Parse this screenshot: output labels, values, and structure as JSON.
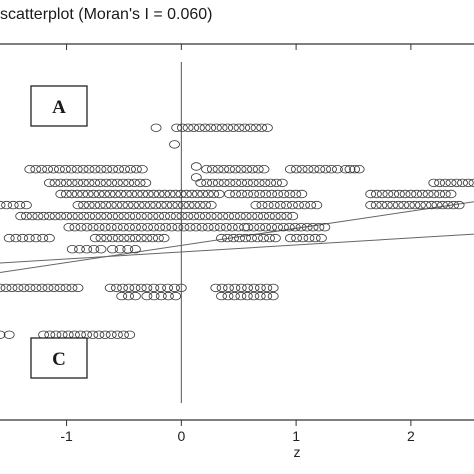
{
  "chart_data": {
    "type": "scatter",
    "title": "scatterplot (Moran's I = 0.060)",
    "xlabel": "z",
    "ylabel": "",
    "xlim": [
      -1.58,
      2.55
    ],
    "ylim": [
      -1.0,
      1.1
    ],
    "x_ticks": [
      -1,
      0,
      1,
      2
    ],
    "x_tick_labels": [
      "-1",
      "0",
      "1",
      "2"
    ],
    "grid": false,
    "quadrant_labels": [
      "A",
      "C"
    ],
    "fit_lines": [
      {
        "x": [
          -1.58,
          2.55
        ],
        "y": [
          -0.176,
          0.219
        ]
      },
      {
        "x": [
          -1.58,
          2.55
        ],
        "y": [
          -0.123,
          0.038
        ]
      }
    ],
    "clusters": [
      {
        "x_from": -0.22,
        "x_to": -0.22,
        "y": 0.632,
        "count": 1
      },
      {
        "x_from": -0.04,
        "x_to": 0.75,
        "y": 0.632,
        "count": 17
      },
      {
        "x_from": -0.06,
        "x_to": -0.06,
        "y": 0.539,
        "count": 1
      },
      {
        "x_from": 0.13,
        "x_to": 0.13,
        "y": 0.416,
        "count": 1
      },
      {
        "x_from": 0.13,
        "x_to": 0.13,
        "y": 0.355,
        "count": 1
      },
      {
        "x_from": -1.32,
        "x_to": -0.34,
        "y": 0.401,
        "count": 20
      },
      {
        "x_from": 0.22,
        "x_to": 0.72,
        "y": 0.401,
        "count": 11
      },
      {
        "x_from": 0.95,
        "x_to": 1.36,
        "y": 0.401,
        "count": 9
      },
      {
        "x_from": 1.43,
        "x_to": 1.55,
        "y": 0.401,
        "count": 4
      },
      {
        "x_from": -1.15,
        "x_to": -0.31,
        "y": 0.324,
        "count": 18
      },
      {
        "x_from": 0.17,
        "x_to": 0.88,
        "y": 0.324,
        "count": 15
      },
      {
        "x_from": 2.2,
        "x_to": 2.55,
        "y": 0.324,
        "count": 8
      },
      {
        "x_from": -1.05,
        "x_to": 0.33,
        "y": 0.262,
        "count": 30
      },
      {
        "x_from": 0.42,
        "x_to": 1.05,
        "y": 0.262,
        "count": 13
      },
      {
        "x_from": 1.65,
        "x_to": 2.35,
        "y": 0.262,
        "count": 15
      },
      {
        "x_from": -1.58,
        "x_to": -1.35,
        "y": 0.2,
        "count": 5
      },
      {
        "x_from": -0.9,
        "x_to": 0.26,
        "y": 0.2,
        "count": 25
      },
      {
        "x_from": 0.65,
        "x_to": 1.18,
        "y": 0.2,
        "count": 11
      },
      {
        "x_from": 1.65,
        "x_to": 2.42,
        "y": 0.2,
        "count": 17
      },
      {
        "x_from": -1.4,
        "x_to": -0.45,
        "y": 0.139,
        "count": 20
      },
      {
        "x_from": -0.4,
        "x_to": 0.97,
        "y": 0.139,
        "count": 28
      },
      {
        "x_from": -0.98,
        "x_to": 0.55,
        "y": 0.077,
        "count": 30
      },
      {
        "x_from": 0.58,
        "x_to": 1.25,
        "y": 0.077,
        "count": 14
      },
      {
        "x_from": -1.5,
        "x_to": -1.15,
        "y": 0.016,
        "count": 7
      },
      {
        "x_from": -0.75,
        "x_to": -0.15,
        "y": 0.016,
        "count": 13
      },
      {
        "x_from": 0.35,
        "x_to": 0.82,
        "y": 0.016,
        "count": 10
      },
      {
        "x_from": 0.95,
        "x_to": 1.22,
        "y": 0.016,
        "count": 6
      },
      {
        "x_from": -0.95,
        "x_to": -0.7,
        "y": -0.046,
        "count": 5
      },
      {
        "x_from": -0.6,
        "x_to": -0.4,
        "y": -0.046,
        "count": 4
      },
      {
        "x_from": -1.58,
        "x_to": -0.9,
        "y": -0.262,
        "count": 14
      },
      {
        "x_from": -0.62,
        "x_to": -0.35,
        "y": -0.262,
        "count": 6
      },
      {
        "x_from": -0.3,
        "x_to": 0.0,
        "y": -0.262,
        "count": 6
      },
      {
        "x_from": 0.3,
        "x_to": 0.8,
        "y": -0.262,
        "count": 10
      },
      {
        "x_from": -0.52,
        "x_to": -0.4,
        "y": -0.308,
        "count": 3
      },
      {
        "x_from": -0.3,
        "x_to": -0.05,
        "y": -0.308,
        "count": 5
      },
      {
        "x_from": 0.35,
        "x_to": 0.8,
        "y": -0.308,
        "count": 9
      },
      {
        "x_from": -1.58,
        "x_to": -1.5,
        "y": -0.524,
        "count": 2
      },
      {
        "x_from": -1.2,
        "x_to": -0.45,
        "y": -0.524,
        "count": 15
      }
    ]
  }
}
